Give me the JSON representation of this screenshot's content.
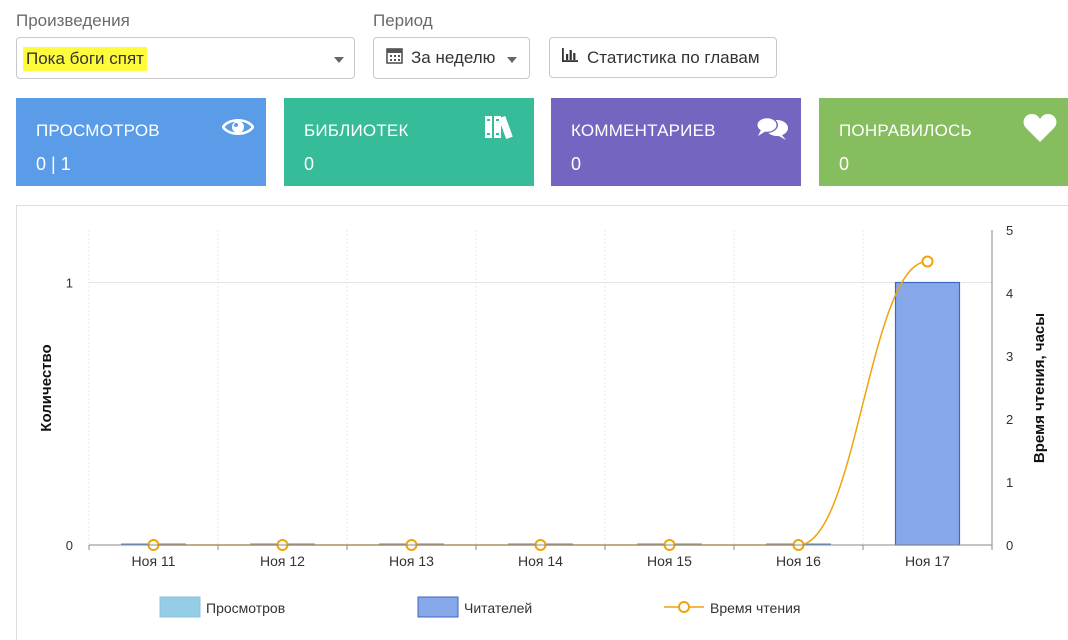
{
  "filters": {
    "works_label": "Произведения",
    "work_selected": "Пока боги спят",
    "period_label": "Период",
    "period_selected": "За неделю",
    "chapter_stats_label": "Статистика по главам"
  },
  "cards": [
    {
      "title": "ПРОСМОТРОВ",
      "value": "0 | 1",
      "color": "#5b9ce8",
      "icon": "eye-icon"
    },
    {
      "title": "БИБЛИОТЕК",
      "value": "0",
      "color": "#36bc98",
      "icon": "books-icon"
    },
    {
      "title": "КОММЕНТАРИЕВ",
      "value": "0",
      "color": "#7466c0",
      "icon": "comments-icon"
    },
    {
      "title": "ПОНРАВИЛОСЬ",
      "value": "0",
      "color": "#86bd5f",
      "icon": "heart-icon"
    }
  ],
  "chart_data": {
    "type": "bar",
    "categories": [
      "Ноя 11",
      "Ноя 12",
      "Ноя 13",
      "Ноя 14",
      "Ноя 15",
      "Ноя 16",
      "Ноя 17"
    ],
    "series": [
      {
        "name": "Просмотров",
        "type": "bar",
        "axis": "left",
        "color": "#95cde6",
        "values": [
          0,
          0,
          0,
          0,
          0,
          0,
          0
        ]
      },
      {
        "name": "Читателей",
        "type": "bar",
        "axis": "left",
        "color": "#86a8e8",
        "values": [
          0,
          0,
          0,
          0,
          0,
          0,
          1
        ]
      },
      {
        "name": "Время чтения",
        "type": "line",
        "axis": "right",
        "color": "#f0a30a",
        "values": [
          0,
          0,
          0,
          0,
          0,
          0,
          4.5
        ]
      }
    ],
    "ylabel": "Количество",
    "y2label": "Время чтения, часы",
    "ylim": [
      0,
      1.2
    ],
    "yticks": [
      "0",
      "1"
    ],
    "y2lim": [
      0,
      5
    ],
    "y2ticks": [
      "0",
      "1",
      "2",
      "3",
      "4",
      "5"
    ],
    "legend_position": "bottom",
    "grid": true
  }
}
